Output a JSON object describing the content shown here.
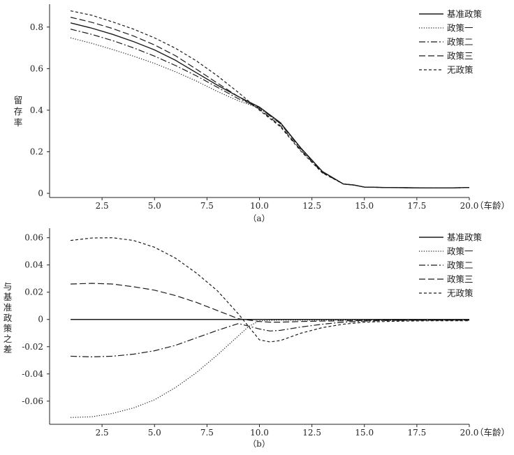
{
  "chart_data": [
    {
      "type": "line",
      "panel_label": "（a）",
      "title": "",
      "xlabel": "（车龄）",
      "ylabel": "留存率",
      "xlim": [
        0,
        20
      ],
      "ylim": [
        -0.02,
        0.91
      ],
      "x_ticks": [
        2.5,
        5.0,
        7.5,
        10.0,
        12.5,
        15.0,
        17.5,
        20.0
      ],
      "x_tick_labels": [
        "2.5",
        "5.0",
        "7.5",
        "10.0",
        "12.5",
        "15.0",
        "17.5",
        "20.0"
      ],
      "y_ticks": [
        0,
        0.2,
        0.4,
        0.6,
        0.8
      ],
      "y_tick_labels": [
        "0",
        "0.2",
        "0.4",
        "0.6",
        "0.8"
      ],
      "legend_position": "top-right",
      "series": [
        {
          "name": "基准政策",
          "style": "solid",
          "x": [
            1,
            2,
            3,
            4,
            5,
            6,
            7,
            8,
            9,
            10,
            11,
            12,
            13,
            14,
            14.5,
            15,
            16,
            17,
            18,
            19,
            20
          ],
          "y": [
            0.82,
            0.795,
            0.765,
            0.73,
            0.69,
            0.64,
            0.58,
            0.52,
            0.465,
            0.415,
            0.34,
            0.215,
            0.105,
            0.045,
            0.04,
            0.03,
            0.028,
            0.027,
            0.026,
            0.026,
            0.028
          ]
        },
        {
          "name": "政策一",
          "style": "dotted",
          "x": [
            1,
            2,
            3,
            4,
            5,
            6,
            7,
            8,
            9,
            10,
            11,
            12,
            13,
            14,
            14.5,
            15,
            16,
            17,
            18,
            19,
            20
          ],
          "y": [
            0.748,
            0.722,
            0.692,
            0.66,
            0.625,
            0.585,
            0.54,
            0.49,
            0.445,
            0.41,
            0.335,
            0.215,
            0.105,
            0.045,
            0.04,
            0.03,
            0.028,
            0.027,
            0.026,
            0.026,
            0.028
          ]
        },
        {
          "name": "政策二",
          "style": "dashdot",
          "x": [
            1,
            2,
            3,
            4,
            5,
            6,
            7,
            8,
            9,
            10,
            11,
            12,
            13,
            14,
            14.5,
            15,
            16,
            17,
            18,
            19,
            20
          ],
          "y": [
            0.79,
            0.765,
            0.735,
            0.7,
            0.66,
            0.615,
            0.565,
            0.51,
            0.455,
            0.412,
            0.335,
            0.212,
            0.104,
            0.045,
            0.04,
            0.03,
            0.028,
            0.027,
            0.026,
            0.026,
            0.028
          ]
        },
        {
          "name": "政策三",
          "style": "longdash",
          "x": [
            1,
            2,
            3,
            4,
            5,
            6,
            7,
            8,
            9,
            10,
            11,
            12,
            13,
            14,
            14.5,
            15,
            16,
            17,
            18,
            19,
            20
          ],
          "y": [
            0.847,
            0.823,
            0.793,
            0.757,
            0.714,
            0.662,
            0.597,
            0.53,
            0.465,
            0.405,
            0.325,
            0.205,
            0.1,
            0.045,
            0.04,
            0.03,
            0.028,
            0.027,
            0.026,
            0.026,
            0.028
          ]
        },
        {
          "name": "无政策",
          "style": "shortdash",
          "x": [
            1,
            2,
            3,
            4,
            5,
            6,
            7,
            8,
            9,
            10,
            11,
            12,
            13,
            14,
            14.5,
            15,
            16,
            17,
            18,
            19,
            20
          ],
          "y": [
            0.878,
            0.857,
            0.825,
            0.79,
            0.748,
            0.698,
            0.637,
            0.565,
            0.485,
            0.4,
            0.32,
            0.2,
            0.098,
            0.045,
            0.04,
            0.03,
            0.028,
            0.027,
            0.026,
            0.026,
            0.028
          ]
        }
      ]
    },
    {
      "type": "line",
      "panel_label": "（b）",
      "title": "",
      "xlabel": "（车龄）",
      "ylabel": "与基准政策之差",
      "xlim": [
        0,
        20
      ],
      "ylim": [
        -0.077,
        0.067
      ],
      "x_ticks": [
        2.5,
        5.0,
        7.5,
        10.0,
        12.5,
        15.0,
        17.5,
        20.0
      ],
      "x_tick_labels": [
        "2.5",
        "5.0",
        "7.5",
        "10.0",
        "12.5",
        "15.0",
        "17.5",
        "20.0"
      ],
      "y_ticks": [
        -0.06,
        -0.04,
        -0.02,
        0,
        0.02,
        0.04,
        0.06
      ],
      "y_tick_labels": [
        "-0.06",
        "-0.04",
        "-0.02",
        "0",
        "0.02",
        "0.04",
        "0.06"
      ],
      "legend_position": "top-right",
      "series": [
        {
          "name": "基准政策",
          "style": "solid",
          "x": [
            1,
            20
          ],
          "y": [
            0,
            0
          ]
        },
        {
          "name": "政策一",
          "style": "dotted",
          "x": [
            1,
            2,
            3,
            4,
            5,
            6,
            7,
            8,
            9,
            9.5,
            10,
            11,
            12,
            13,
            14,
            15,
            16,
            17,
            18,
            19,
            20
          ],
          "y": [
            -0.072,
            -0.0715,
            -0.069,
            -0.065,
            -0.059,
            -0.05,
            -0.039,
            -0.026,
            -0.012,
            -0.005,
            -0.001,
            -0.0005,
            -0.0005,
            -0.0005,
            -0.0005,
            -0.0005,
            -0.0005,
            -0.0005,
            -0.0005,
            -0.0005,
            -0.0005
          ]
        },
        {
          "name": "政策二",
          "style": "dashdot",
          "x": [
            1,
            2,
            3,
            4,
            5,
            6,
            7,
            8,
            9,
            10,
            10.5,
            11,
            12,
            13,
            14,
            15,
            16,
            17,
            18,
            19,
            20
          ],
          "y": [
            -0.027,
            -0.0275,
            -0.027,
            -0.0255,
            -0.023,
            -0.019,
            -0.0135,
            -0.008,
            -0.003,
            -0.007,
            -0.0085,
            -0.008,
            -0.0055,
            -0.0035,
            -0.002,
            -0.0012,
            -0.0008,
            -0.0006,
            -0.0005,
            -0.0005,
            -0.0005
          ]
        },
        {
          "name": "政策三",
          "style": "longdash",
          "x": [
            1,
            2,
            3,
            4,
            5,
            6,
            7,
            8,
            9,
            10,
            10.5,
            11,
            12,
            13,
            14,
            15,
            16,
            17,
            18,
            19,
            20
          ],
          "y": [
            0.026,
            0.0265,
            0.026,
            0.024,
            0.0215,
            0.0175,
            0.0125,
            0.0065,
            0.0005,
            -0.0015,
            -0.002,
            -0.002,
            -0.0015,
            -0.0012,
            -0.001,
            -0.0008,
            -0.0007,
            -0.0006,
            -0.0006,
            -0.0006,
            -0.0006
          ]
        },
        {
          "name": "无政策",
          "style": "shortdash",
          "x": [
            1,
            2,
            3,
            4,
            5,
            6,
            7,
            8,
            9,
            10,
            10.5,
            11,
            12,
            13,
            14,
            15,
            16,
            17,
            18,
            19,
            20
          ],
          "y": [
            0.058,
            0.0598,
            0.06,
            0.058,
            0.053,
            0.045,
            0.034,
            0.021,
            0.004,
            -0.015,
            -0.0165,
            -0.0155,
            -0.01,
            -0.006,
            -0.0035,
            -0.002,
            -0.0015,
            -0.0012,
            -0.001,
            -0.001,
            -0.001
          ]
        }
      ]
    }
  ]
}
